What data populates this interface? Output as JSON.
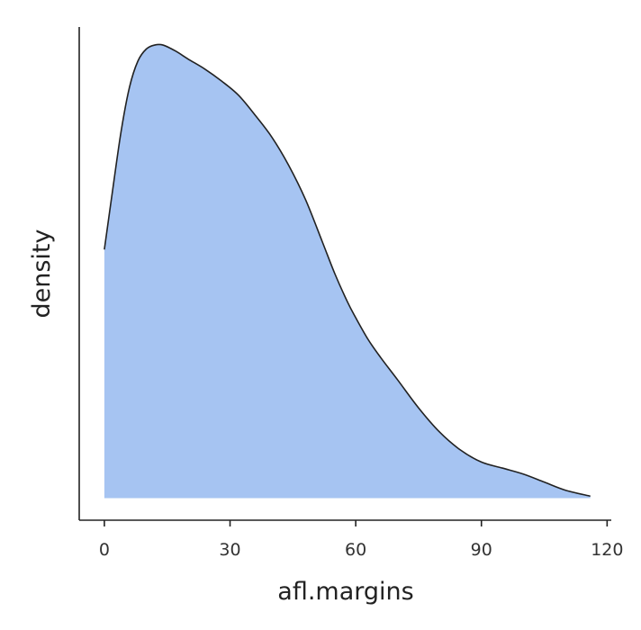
{
  "chart_data": {
    "type": "area",
    "xlabel": "afl.margins",
    "ylabel": "density",
    "xlim": [
      -6,
      121
    ],
    "ylim": [
      -0.0011,
      0.0235
    ],
    "x_ticks": [
      0,
      30,
      60,
      90,
      120
    ],
    "y_ticks": [],
    "grid": false,
    "legend": "none",
    "fill_color": "#a6c4f2",
    "line_color": "#222222",
    "series": [
      {
        "x": [
          0,
          2,
          4,
          6,
          8,
          10,
          12,
          14,
          17,
          20,
          24,
          28,
          32,
          36,
          40,
          44,
          48,
          52,
          55,
          58,
          60,
          63,
          66,
          70,
          75,
          80,
          85,
          90,
          95,
          100,
          105,
          110,
          116
        ],
        "values": [
          0.0124,
          0.0154,
          0.0183,
          0.0205,
          0.0218,
          0.0224,
          0.0226,
          0.0226,
          0.0223,
          0.0219,
          0.0214,
          0.0208,
          0.0201,
          0.0191,
          0.018,
          0.0166,
          0.0149,
          0.0128,
          0.0112,
          0.0098,
          0.009,
          0.0079,
          0.007,
          0.0059,
          0.0045,
          0.0033,
          0.0024,
          0.0018,
          0.0015,
          0.0012,
          0.0008,
          0.0004,
          0.0001
        ]
      }
    ]
  }
}
